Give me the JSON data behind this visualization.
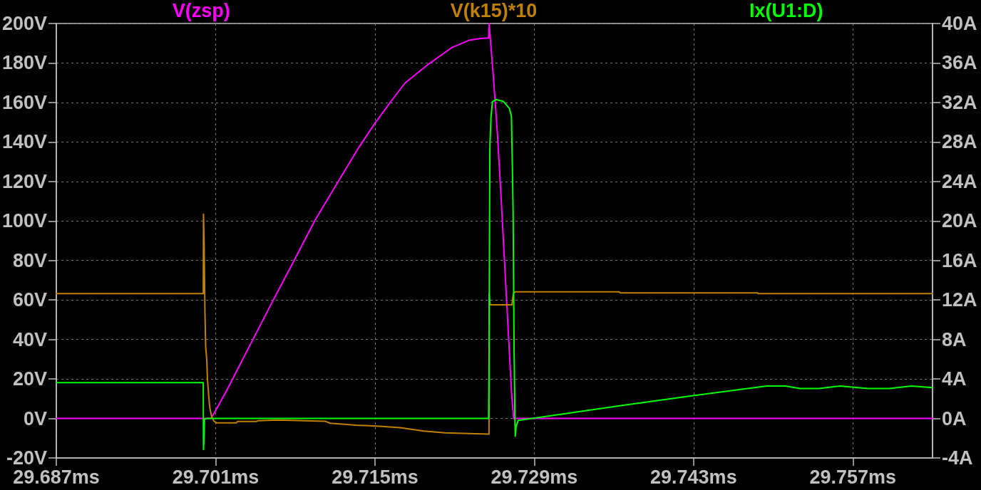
{
  "chart_data": {
    "type": "line",
    "xlim": [
      29.687,
      29.764
    ],
    "xticks": [
      {
        "value": 29.687,
        "label": "29.687ms"
      },
      {
        "value": 29.701,
        "label": "29.701ms"
      },
      {
        "value": 29.715,
        "label": "29.715ms"
      },
      {
        "value": 29.729,
        "label": "29.729ms"
      },
      {
        "value": 29.743,
        "label": "29.743ms"
      },
      {
        "value": 29.757,
        "label": "29.757ms"
      }
    ],
    "ylim": [
      -20,
      200
    ],
    "yticks": [
      {
        "value": -20,
        "label": "-20V"
      },
      {
        "value": 0,
        "label": "0V"
      },
      {
        "value": 20,
        "label": "20V"
      },
      {
        "value": 40,
        "label": "40V"
      },
      {
        "value": 60,
        "label": "60V"
      },
      {
        "value": 80,
        "label": "80V"
      },
      {
        "value": 100,
        "label": "100V"
      },
      {
        "value": 120,
        "label": "120V"
      },
      {
        "value": 140,
        "label": "140V"
      },
      {
        "value": 160,
        "label": "160V"
      },
      {
        "value": 180,
        "label": "180V"
      },
      {
        "value": 200,
        "label": "200V"
      }
    ],
    "y2lim": [
      -4,
      40
    ],
    "y2ticks": [
      {
        "value": -4,
        "label": "-4A"
      },
      {
        "value": 0,
        "label": "0A"
      },
      {
        "value": 4,
        "label": "4A"
      },
      {
        "value": 8,
        "label": "8A"
      },
      {
        "value": 12,
        "label": "12A"
      },
      {
        "value": 16,
        "label": "16A"
      },
      {
        "value": 20,
        "label": "20A"
      },
      {
        "value": 24,
        "label": "24A"
      },
      {
        "value": 28,
        "label": "28A"
      },
      {
        "value": 32,
        "label": "32A"
      },
      {
        "value": 36,
        "label": "36A"
      },
      {
        "value": 40,
        "label": "40A"
      }
    ],
    "grid": true,
    "legend": "top",
    "marker": "none",
    "line_style": "solid",
    "series": [
      {
        "name": "V(zsp)",
        "color": "#ff00ff",
        "x": [
          29.687,
          29.70058,
          29.70095,
          29.70195,
          29.70427,
          29.70608,
          29.70789,
          29.70971,
          29.71177,
          29.71346,
          29.71498,
          29.71628,
          29.71763,
          29.71972,
          29.72178,
          29.72326,
          29.7243,
          29.72499,
          29.72503,
          29.72514,
          29.72535,
          29.72555,
          29.72577,
          29.72604,
          29.72702,
          29.72719,
          29.764
        ],
        "values": [
          0,
          0,
          3.5,
          14,
          40,
          60.2,
          80,
          100.2,
          120,
          136.2,
          149.4,
          159.6,
          169.8,
          179.5,
          187.9,
          191.5,
          192.4,
          192.7,
          200,
          192,
          177,
          161.4,
          143.4,
          116.4,
          11.3,
          0,
          0
        ]
      },
      {
        "name": "V(k15)*10",
        "color": "#c08000",
        "x": [
          29.687,
          29.69991,
          29.69993,
          29.69999,
          29.70006,
          29.70012,
          29.70022,
          29.70028,
          29.70039,
          29.70049,
          29.70064,
          29.70084,
          29.70106,
          29.70283,
          29.70293,
          29.7046,
          29.7047,
          29.70646,
          29.71062,
          29.71107,
          29.71335,
          29.71562,
          29.71721,
          29.7193,
          29.72117,
          29.72389,
          29.72502,
          29.72503,
          29.72513,
          29.72704,
          29.72716,
          29.72732,
          29.73648,
          29.73654,
          29.74862,
          29.74868,
          29.764
        ],
        "values": [
          63.2,
          63.2,
          103.4,
          87,
          53.3,
          36.5,
          29.3,
          19.7,
          11.3,
          5.3,
          1.1,
          -1.3,
          -2.2,
          -2.2,
          -1.5,
          -1.5,
          -1.2,
          -0.8,
          -1.4,
          -2.4,
          -3.4,
          -4.0,
          -4.7,
          -6.4,
          -7.3,
          -7.7,
          -7.9,
          63.2,
          57.5,
          57.5,
          63.2,
          64.1,
          64.1,
          63.6,
          63.6,
          63.2,
          63.2
        ]
      },
      {
        "name": "Ix(U1:D)",
        "color": "#00ff00",
        "axis": "y2",
        "x": [
          29.687,
          29.69991,
          29.69993,
          29.69998,
          29.70001,
          29.7002,
          29.72499,
          29.72502,
          29.72507,
          29.7251,
          29.7252,
          29.72533,
          29.72566,
          29.7263,
          29.72681,
          29.72699,
          29.72707,
          29.72714,
          29.72722,
          29.7273,
          29.72733,
          29.72741,
          29.72758,
          29.73673,
          29.74296,
          29.74943,
          29.75106,
          29.75237,
          29.754,
          29.75587,
          29.75831,
          29.76019,
          29.76211,
          29.764
        ],
        "values": [
          3.62,
          3.62,
          -3.15,
          -1.8,
          -0.1,
          0,
          0,
          4.1,
          20.6,
          27.6,
          30.6,
          32.1,
          32.3,
          32.1,
          31.4,
          30.6,
          25.8,
          20.9,
          7.6,
          0,
          -1.8,
          -0.8,
          -0.2,
          1.32,
          2.31,
          3.28,
          3.28,
          3.03,
          3.03,
          3.28,
          3.03,
          3.03,
          3.28,
          3.12
        ]
      }
    ]
  }
}
